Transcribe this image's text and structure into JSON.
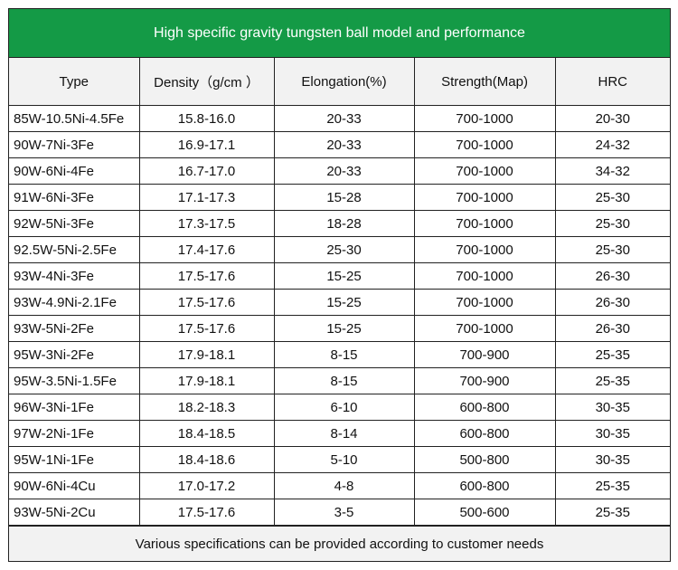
{
  "title": "High specific gravity tungsten ball model and performance",
  "headers": {
    "type": "Type",
    "density": "Density（g/cm ）",
    "elongation": "Elongation(%)",
    "strength": "Strength(Map)",
    "hrc": "HRC"
  },
  "rows": [
    {
      "type": "85W-10.5Ni-4.5Fe",
      "density": "15.8-16.0",
      "elongation": "20-33",
      "strength": "700-1000",
      "hrc": "20-30"
    },
    {
      "type": "90W-7Ni-3Fe",
      "density": "16.9-17.1",
      "elongation": "20-33",
      "strength": "700-1000",
      "hrc": "24-32"
    },
    {
      "type": "90W-6Ni-4Fe",
      "density": "16.7-17.0",
      "elongation": "20-33",
      "strength": "700-1000",
      "hrc": "34-32"
    },
    {
      "type": "91W-6Ni-3Fe",
      "density": "17.1-17.3",
      "elongation": "15-28",
      "strength": "700-1000",
      "hrc": "25-30"
    },
    {
      "type": "92W-5Ni-3Fe",
      "density": "17.3-17.5",
      "elongation": "18-28",
      "strength": "700-1000",
      "hrc": "25-30"
    },
    {
      "type": "92.5W-5Ni-2.5Fe",
      "density": "17.4-17.6",
      "elongation": "25-30",
      "strength": "700-1000",
      "hrc": "25-30"
    },
    {
      "type": "93W-4Ni-3Fe",
      "density": "17.5-17.6",
      "elongation": "15-25",
      "strength": "700-1000",
      "hrc": "26-30"
    },
    {
      "type": "93W-4.9Ni-2.1Fe",
      "density": "17.5-17.6",
      "elongation": "15-25",
      "strength": "700-1000",
      "hrc": "26-30"
    },
    {
      "type": "93W-5Ni-2Fe",
      "density": "17.5-17.6",
      "elongation": "15-25",
      "strength": "700-1000",
      "hrc": "26-30"
    },
    {
      "type": "95W-3Ni-2Fe",
      "density": "17.9-18.1",
      "elongation": "8-15",
      "strength": "700-900",
      "hrc": "25-35"
    },
    {
      "type": "95W-3.5Ni-1.5Fe",
      "density": "17.9-18.1",
      "elongation": "8-15",
      "strength": "700-900",
      "hrc": "25-35"
    },
    {
      "type": "96W-3Ni-1Fe",
      "density": "18.2-18.3",
      "elongation": "6-10",
      "strength": "600-800",
      "hrc": "30-35"
    },
    {
      "type": "97W-2Ni-1Fe",
      "density": "18.4-18.5",
      "elongation": "8-14",
      "strength": "600-800",
      "hrc": "30-35"
    },
    {
      "type": "95W-1Ni-1Fe",
      "density": "18.4-18.6",
      "elongation": "5-10",
      "strength": "500-800",
      "hrc": "30-35"
    },
    {
      "type": "90W-6Ni-4Cu",
      "density": "17.0-17.2",
      "elongation": "4-8",
      "strength": "600-800",
      "hrc": "25-35"
    },
    {
      "type": "93W-5Ni-2Cu",
      "density": "17.5-17.6",
      "elongation": "3-5",
      "strength": "500-600",
      "hrc": "25-35"
    }
  ],
  "footer": "Various specifications can be provided according to customer needs",
  "colors": {
    "title_background": "#149a46",
    "title_text": "#ffffff",
    "header_background": "#f2f2f2",
    "border": "#222222"
  }
}
